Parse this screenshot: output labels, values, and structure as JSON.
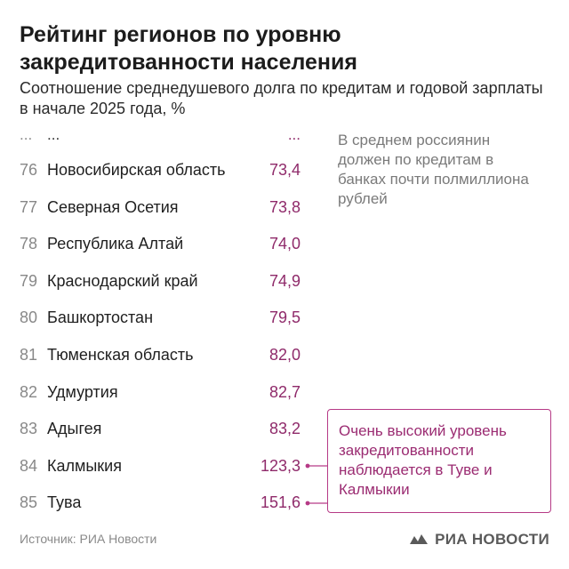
{
  "header": {
    "title": "Рейтинг регионов по уровню закредитованности населения",
    "subtitle": "Соотношение среднедушевого долга по кредитам и годовой зарплаты в начале 2025 года, %"
  },
  "ellipsis": {
    "rank": "...",
    "name": "...",
    "value": "..."
  },
  "rows": [
    {
      "rank": "76",
      "name": "Новосибирская область",
      "value": "73,4"
    },
    {
      "rank": "77",
      "name": "Северная Осетия",
      "value": "73,8"
    },
    {
      "rank": "78",
      "name": "Республика Алтай",
      "value": "74,0"
    },
    {
      "rank": "79",
      "name": "Краснодарский край",
      "value": "74,9"
    },
    {
      "rank": "80",
      "name": "Башкортостан",
      "value": "79,5"
    },
    {
      "rank": "81",
      "name": "Тюменская область",
      "value": "82,0"
    },
    {
      "rank": "82",
      "name": "Удмуртия",
      "value": "82,7"
    },
    {
      "rank": "83",
      "name": "Адыгея",
      "value": "83,2"
    },
    {
      "rank": "84",
      "name": "Калмыкия",
      "value": "123,3"
    },
    {
      "rank": "85",
      "name": "Тува",
      "value": "151,6"
    }
  ],
  "note": "В среднем россиянин должен по кредитам в банках почти полмиллиона рублей",
  "callout": "Очень высокий уровень закредитованности наблюдается в Туве и Калмыкии",
  "source": "Источник: РИА Новости",
  "logo": {
    "text": "РИА НОВОСТИ",
    "icon": "ria-logo-icon"
  },
  "colors": {
    "accent": "#8f2a6a",
    "callout_border": "#b63a86",
    "muted": "#8a8a8a"
  },
  "chart_data": {
    "type": "table",
    "title": "Рейтинг регионов по уровню закредитованности населения",
    "subtitle": "Соотношение среднедушевого долга по кредитам и годовой зарплаты в начале 2025 года, %",
    "columns": [
      "rank",
      "region",
      "value"
    ],
    "categories": [
      "Новосибирская область",
      "Северная Осетия",
      "Республика Алтай",
      "Краснодарский край",
      "Башкортостан",
      "Тюменская область",
      "Удмуртия",
      "Адыгея",
      "Калмыкия",
      "Тува"
    ],
    "ranks": [
      76,
      77,
      78,
      79,
      80,
      81,
      82,
      83,
      84,
      85
    ],
    "values": [
      73.4,
      73.8,
      74.0,
      74.9,
      79.5,
      82.0,
      82.7,
      83.2,
      123.3,
      151.6
    ],
    "highlighted": [
      "Калмыкия",
      "Тува"
    ]
  }
}
